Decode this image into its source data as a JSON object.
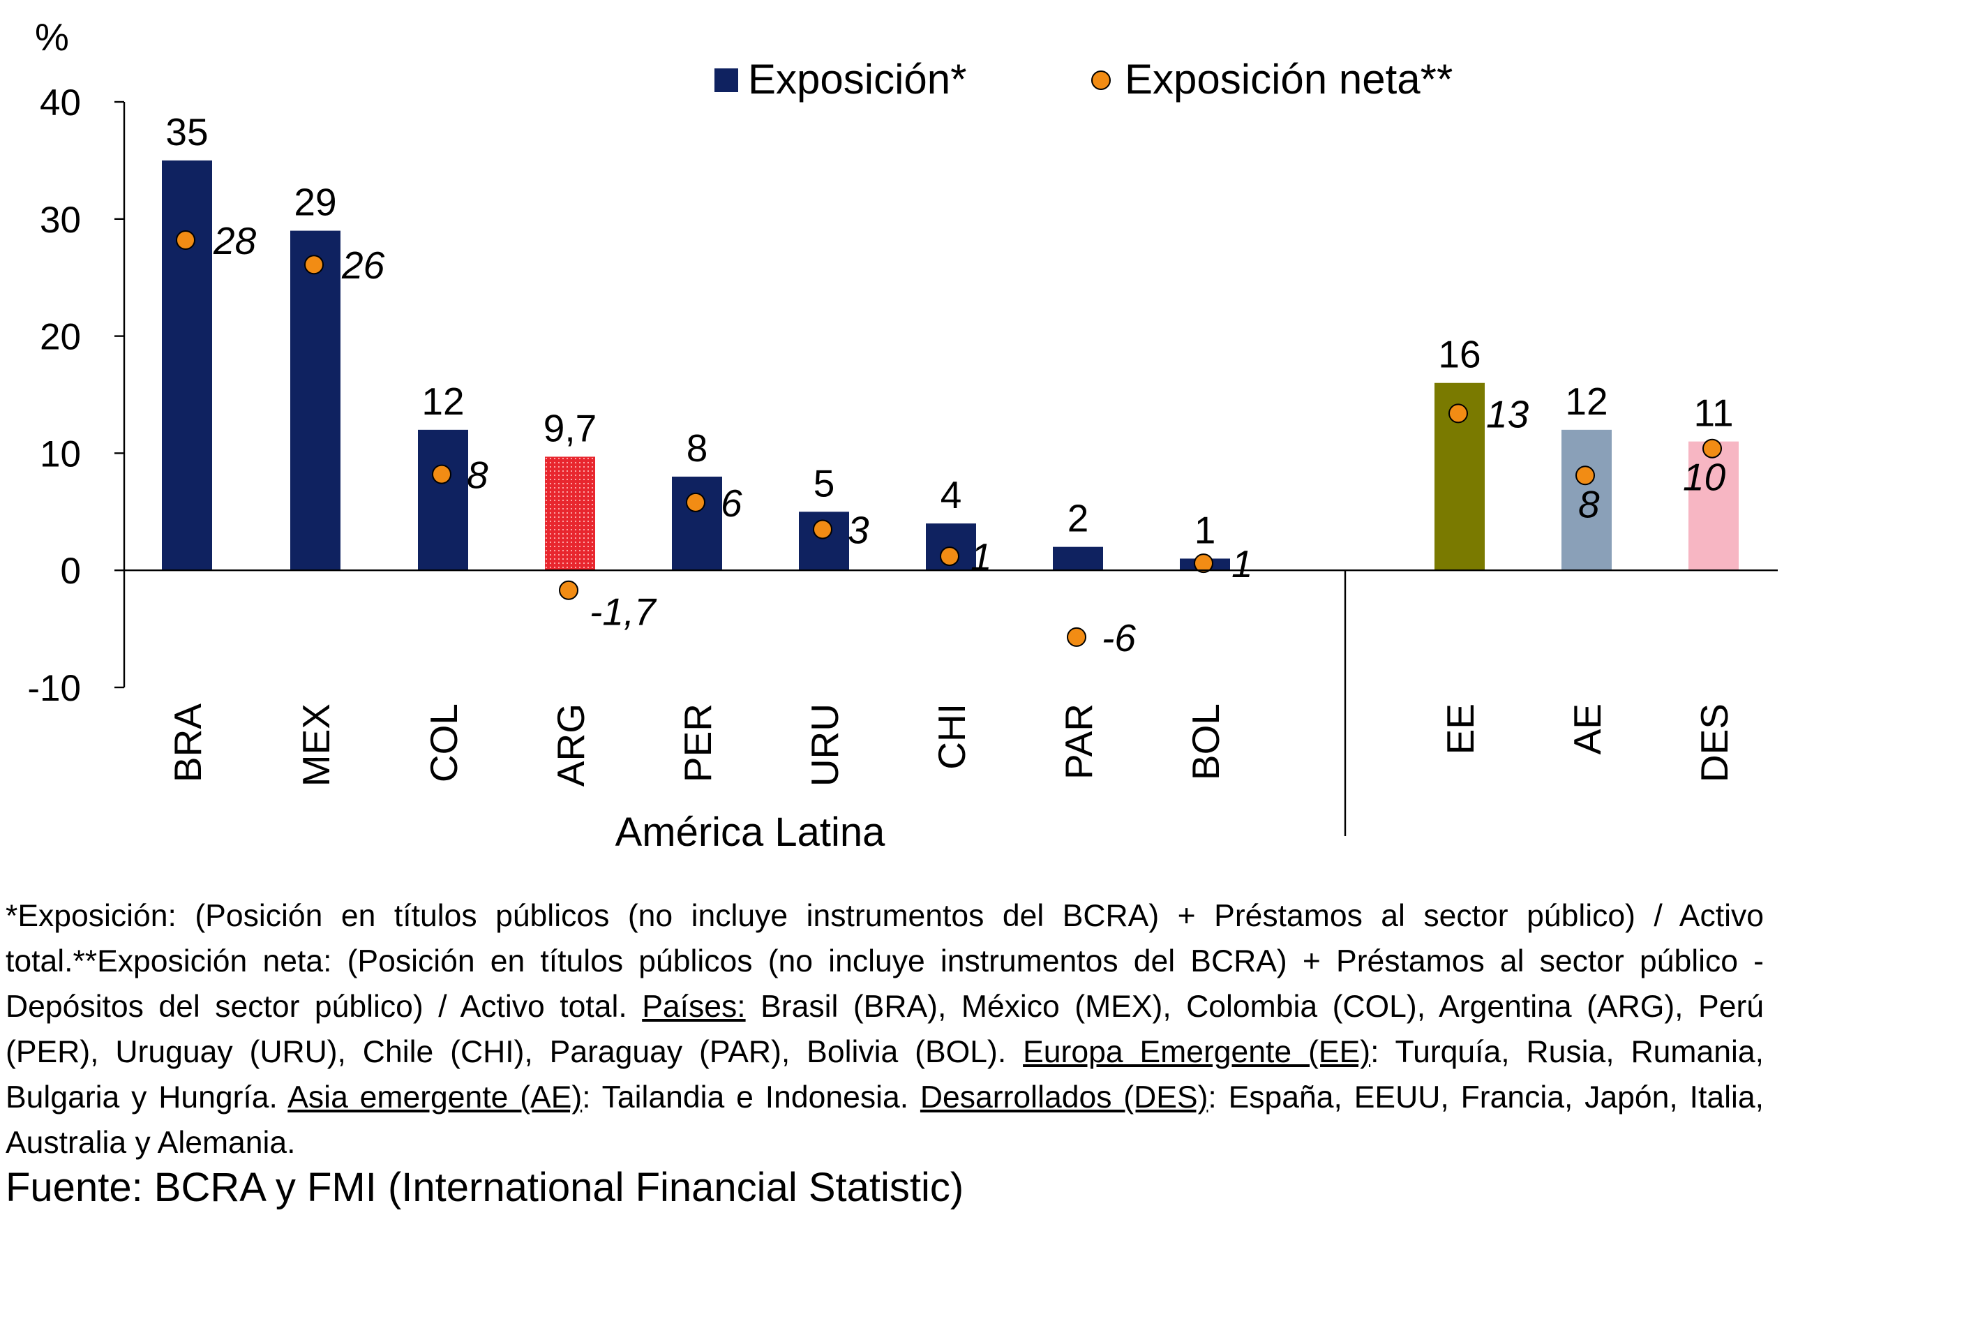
{
  "chart_data": {
    "type": "bar",
    "unit_label": "%",
    "ylim": [
      -10,
      40
    ],
    "yticks": [
      -10,
      0,
      10,
      20,
      30,
      40
    ],
    "categories": [
      "BRA",
      "MEX",
      "COL",
      "ARG",
      "PER",
      "URU",
      "CHI",
      "PAR",
      "BOL",
      "EE",
      "AE",
      "DES"
    ],
    "group_label": "América Latina",
    "series": [
      {
        "name": "Exposición*",
        "type": "bar",
        "color": "#0f2260",
        "values": [
          35,
          29,
          12,
          9.7,
          8,
          5,
          4,
          2,
          1,
          16,
          12,
          11
        ],
        "labels": [
          "35",
          "29",
          "12",
          "9,7",
          "8",
          "5",
          "4",
          "2",
          "1",
          "16",
          "12",
          "11"
        ],
        "colors": [
          "#0f2260",
          "#0f2260",
          "#0f2260",
          "#e8262e",
          "#0f2260",
          "#0f2260",
          "#0f2260",
          "#0f2260",
          "#0f2260",
          "#7a7a00",
          "#8aa0b8",
          "#f7b6c3"
        ]
      },
      {
        "name": "Exposición neta**",
        "type": "scatter",
        "color": "#f28c14",
        "values": [
          28.2,
          26.1,
          8.2,
          -1.7,
          5.8,
          3.5,
          1.2,
          -5.7,
          0.6,
          13.4,
          8.1,
          10.4
        ],
        "labels": [
          "28",
          "26",
          "8",
          "-1,7",
          "6",
          "3",
          "1",
          "-6",
          "1",
          "13",
          "8",
          "10"
        ]
      }
    ]
  },
  "notes": {
    "line1": "*Exposición: (Posición en títulos públicos (no incluye instrumentos del BCRA) + Préstamos al sector público) / Activo total.**Exposición neta: (Posición en títulos públicos (no incluye instrumentos del BCRA) + Préstamos al sector público - Depósitos del sector público) / Activo total. ",
    "paises_label": "Países:",
    "paises_text": " Brasil (BRA), México (MEX), Colombia (COL), Argentina (ARG), Perú (PER), Uruguay (URU), Chile (CHI), Paraguay (PAR), Bolivia (BOL). ",
    "ee_label": "Europa Emergente (EE)",
    "ee_text": ": Turquía, Rusia, Rumania, Bulgaria y Hungría. ",
    "ae_label": "Asia emergente (AE)",
    "ae_text": ": Tailandia e Indonesia. ",
    "des_label": "Desarrollados (DES)",
    "des_text": ": España, EEUU, Francia, Japón, Italia, Australia y Alemania."
  },
  "source": "Fuente: BCRA y FMI (International Financial Statistic)"
}
